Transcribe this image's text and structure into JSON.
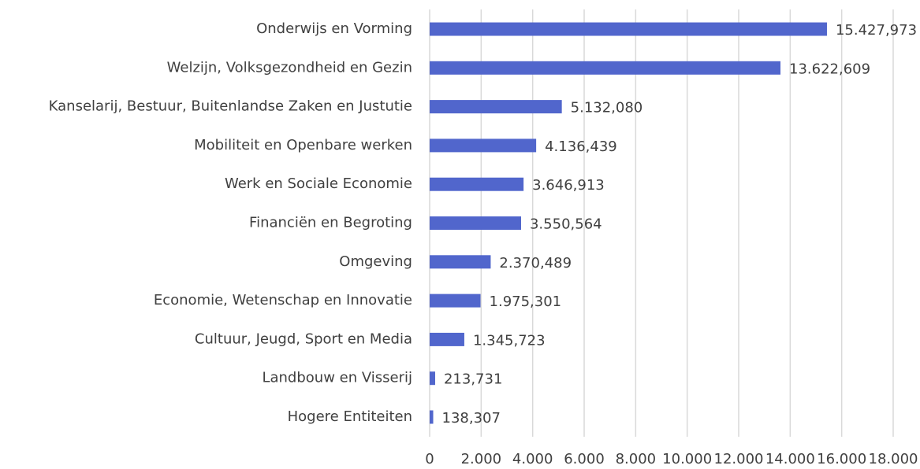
{
  "chart_data": {
    "type": "bar",
    "orientation": "horizontal",
    "categories": [
      "Onderwijs en Vorming",
      "Welzijn, Volksgezondheid en Gezin",
      "Kanselarij, Bestuur, Buitenlandse Zaken en Justutie",
      "Mobiliteit en Openbare werken",
      "Werk en Sociale Economie",
      "Financiën en Begroting",
      "Omgeving",
      "Economie, Wetenschap en Innovatie",
      "Cultuur, Jeugd, Sport en Media",
      "Landbouw en Visserij",
      "Hogere Entiteiten"
    ],
    "values": [
      15427.973,
      13622.609,
      5132.08,
      4136.439,
      3646.913,
      3550.564,
      2370.489,
      1975.301,
      1345.723,
      213.731,
      138.307
    ],
    "value_labels": [
      "15.427,973",
      "13.622,609",
      "5.132,080",
      "4.136,439",
      "3.646,913",
      "3.550,564",
      "2.370,489",
      "1.975,301",
      "1.345,723",
      "213,731",
      "138,307"
    ],
    "color": "#5166cc",
    "xlim": [
      0,
      18000
    ],
    "xticks": [
      0,
      {
        "value": 2000,
        "label": "2.000"
      },
      {
        "value": 4000,
        "label": "4.000"
      },
      {
        "value": 6000,
        "label": "6.000"
      },
      {
        "value": 8000,
        "label": "8.000"
      },
      {
        "value": 10000,
        "label": "10.000"
      },
      {
        "value": 12000,
        "label": "12.000"
      },
      {
        "value": 14000,
        "label": "14.000"
      },
      {
        "value": 16000,
        "label": "16.000"
      },
      {
        "value": 18000,
        "label": "18.000"
      }
    ],
    "grid": true
  }
}
